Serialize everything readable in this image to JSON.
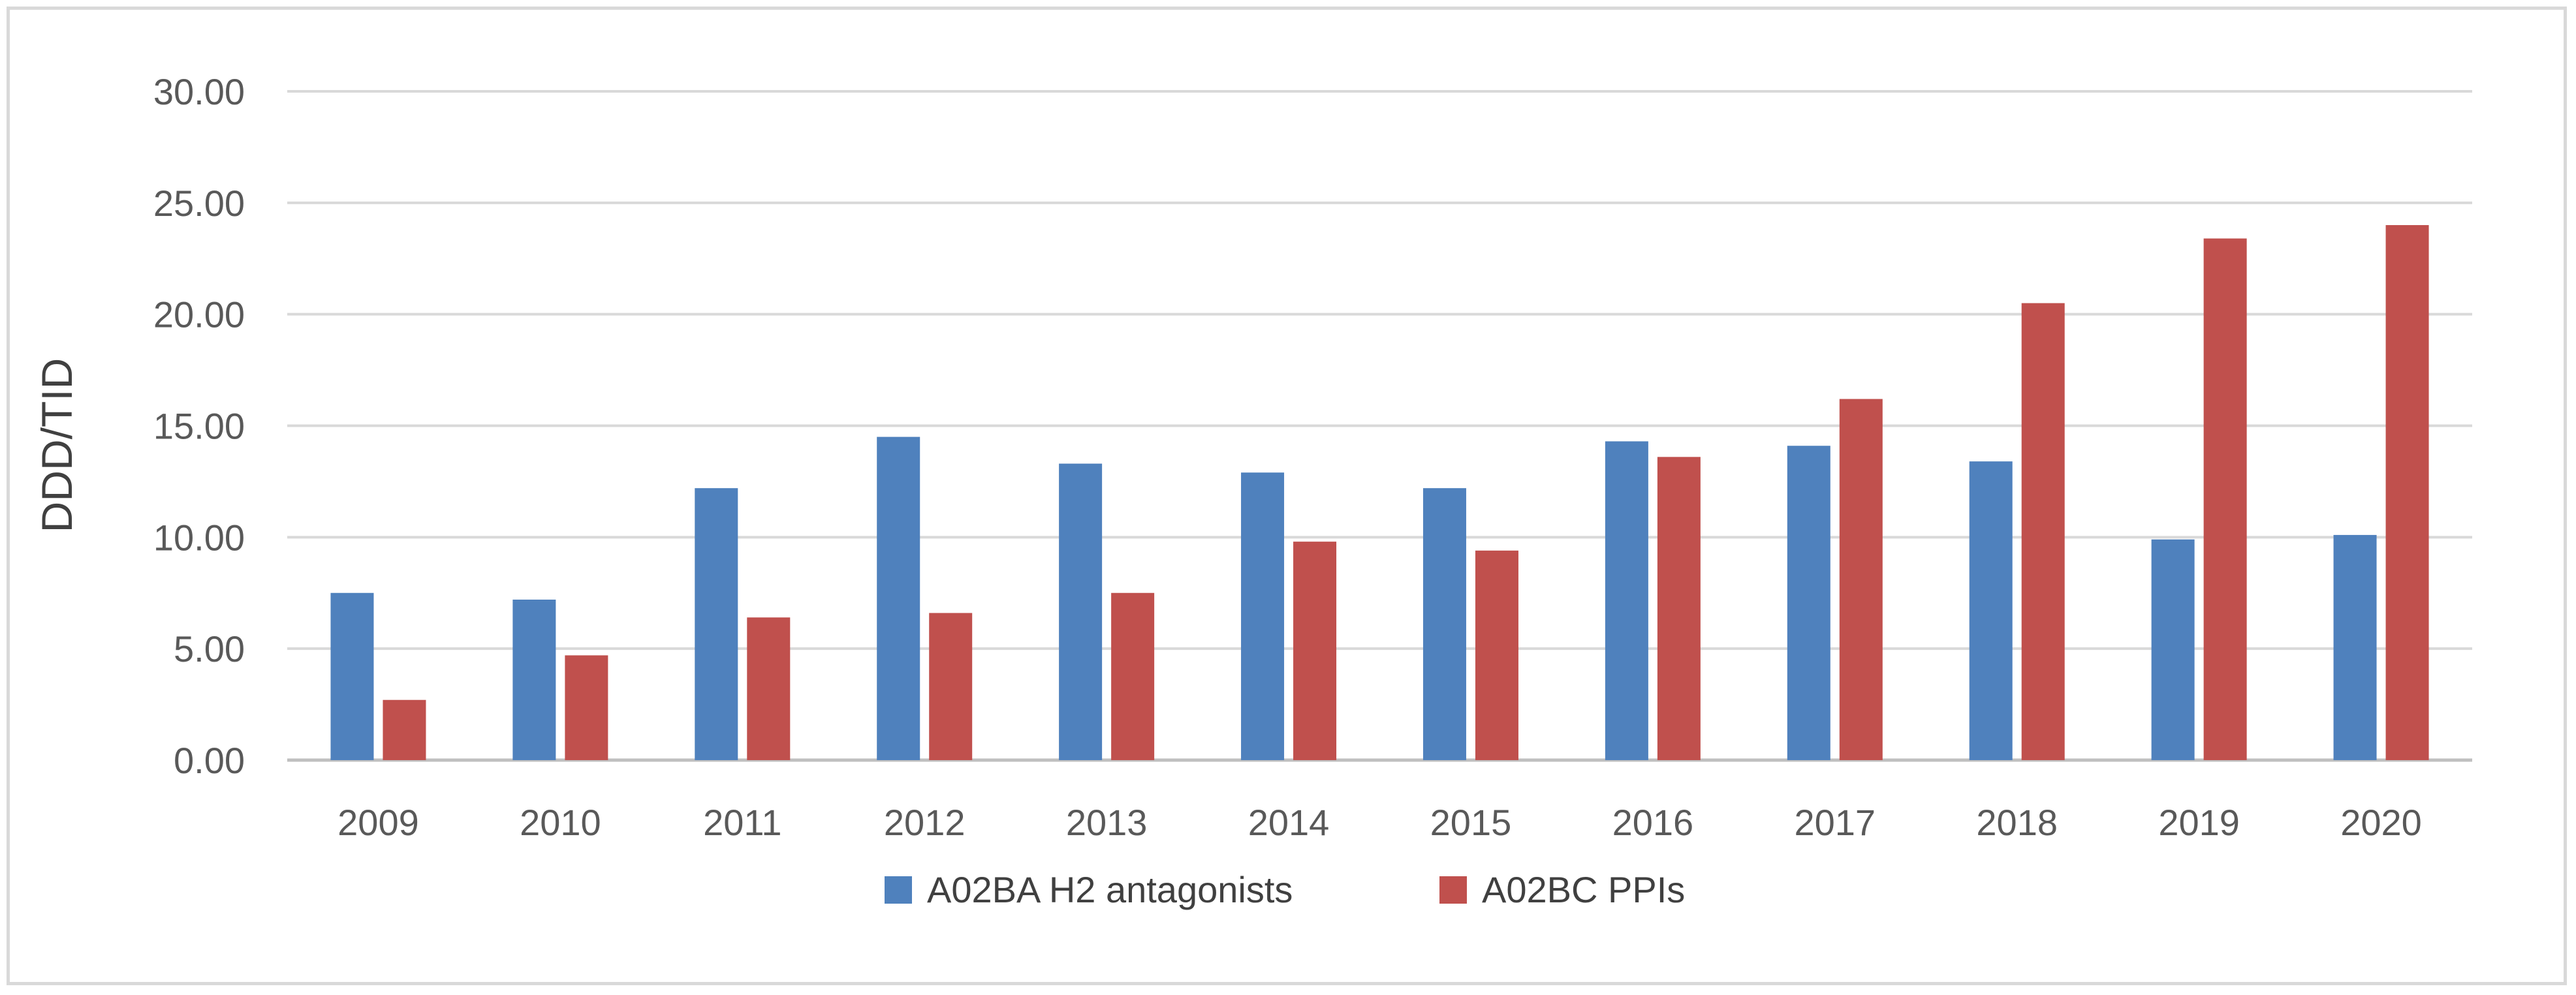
{
  "chart_data": {
    "type": "bar",
    "title": "",
    "xlabel": "",
    "ylabel": "DDD/TID",
    "ylim": [
      0,
      30
    ],
    "ytick_step": 5,
    "ytick_labels": [
      "0.00",
      "5.00",
      "10.00",
      "15.00",
      "20.00",
      "25.00",
      "30.00"
    ],
    "grid": true,
    "legend_position": "bottom",
    "categories": [
      "2009",
      "2010",
      "2011",
      "2012",
      "2013",
      "2014",
      "2015",
      "2016",
      "2017",
      "2018",
      "2019",
      "2020"
    ],
    "series": [
      {
        "name": "A02BA H2 antagonists",
        "color": "#4f81bd",
        "values": [
          7.5,
          7.2,
          12.2,
          14.5,
          13.3,
          12.9,
          12.2,
          14.3,
          14.1,
          13.4,
          9.9,
          10.1
        ]
      },
      {
        "name": "A02BC PPIs",
        "color": "#c0504d",
        "values": [
          2.7,
          4.7,
          6.4,
          6.6,
          7.5,
          9.8,
          9.4,
          13.6,
          16.2,
          20.5,
          23.4,
          24.0
        ]
      }
    ]
  }
}
